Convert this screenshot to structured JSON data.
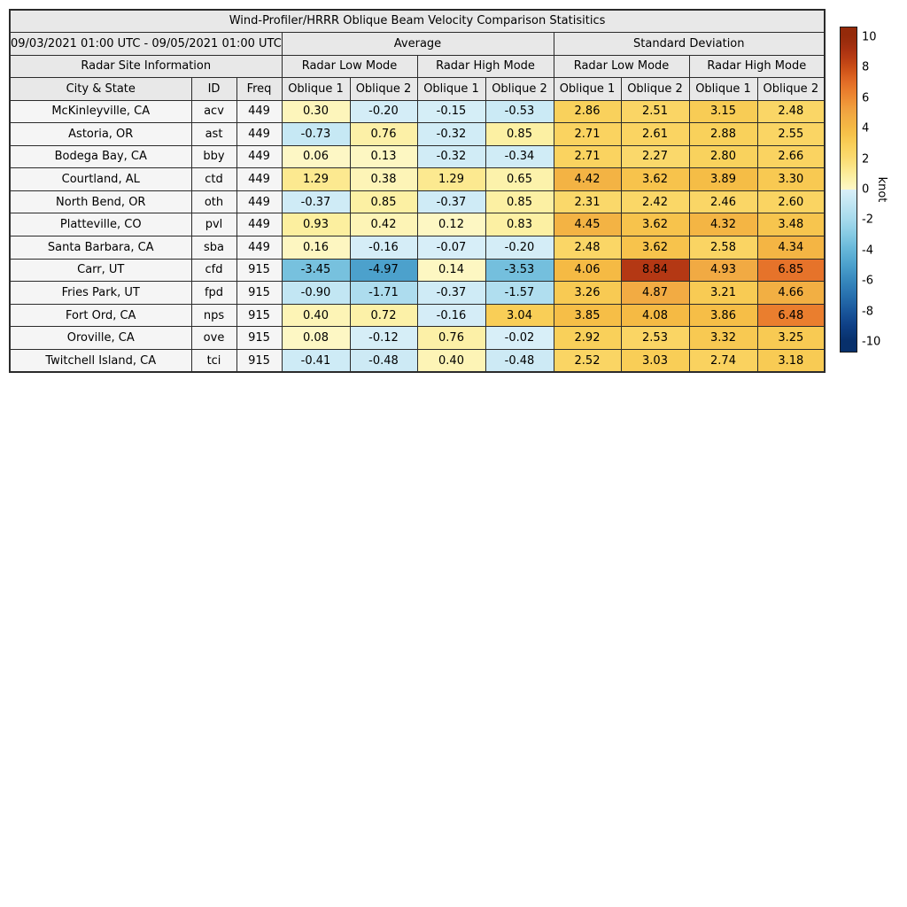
{
  "chart_data": {
    "type": "heatmap-table",
    "title": "Wind-Profiler/HRRR Oblique Beam Velocity Comparison Statisitics",
    "period": "09/03/2021 01:00 UTC - 09/05/2021 01:00 UTC",
    "group_headers": {
      "average": "Average",
      "std_dev": "Standard Deviation",
      "site_info": "Radar Site Information",
      "low_mode": "Radar Low Mode",
      "high_mode": "Radar High Mode"
    },
    "column_headers": {
      "city": "City & State",
      "id": "ID",
      "freq": "Freq",
      "oblique1": "Oblique 1",
      "oblique2": "Oblique 2"
    },
    "rows": [
      {
        "city": "McKinleyville, CA",
        "id": "acv",
        "freq": "449",
        "values": [
          "0.30",
          "-0.20",
          "-0.15",
          "-0.53",
          "2.86",
          "2.51",
          "3.15",
          "2.48"
        ]
      },
      {
        "city": "Astoria, OR",
        "id": "ast",
        "freq": "449",
        "values": [
          "-0.73",
          "0.76",
          "-0.32",
          "0.85",
          "2.71",
          "2.61",
          "2.88",
          "2.55"
        ]
      },
      {
        "city": "Bodega Bay, CA",
        "id": "bby",
        "freq": "449",
        "values": [
          "0.06",
          "0.13",
          "-0.32",
          "-0.34",
          "2.71",
          "2.27",
          "2.80",
          "2.66"
        ]
      },
      {
        "city": "Courtland, AL",
        "id": "ctd",
        "freq": "449",
        "values": [
          "1.29",
          "0.38",
          "1.29",
          "0.65",
          "4.42",
          "3.62",
          "3.89",
          "3.30"
        ]
      },
      {
        "city": "North Bend, OR",
        "id": "oth",
        "freq": "449",
        "values": [
          "-0.37",
          "0.85",
          "-0.37",
          "0.85",
          "2.31",
          "2.42",
          "2.46",
          "2.60"
        ]
      },
      {
        "city": "Platteville, CO",
        "id": "pvl",
        "freq": "449",
        "values": [
          "0.93",
          "0.42",
          "0.12",
          "0.83",
          "4.45",
          "3.62",
          "4.32",
          "3.48"
        ]
      },
      {
        "city": "Santa Barbara, CA",
        "id": "sba",
        "freq": "449",
        "values": [
          "0.16",
          "-0.16",
          "-0.07",
          "-0.20",
          "2.48",
          "3.62",
          "2.58",
          "4.34"
        ]
      },
      {
        "city": "Carr, UT",
        "id": "cfd",
        "freq": "915",
        "values": [
          "-3.45",
          "-4.97",
          "0.14",
          "-3.53",
          "4.06",
          "8.84",
          "4.93",
          "6.85"
        ]
      },
      {
        "city": "Fries Park, UT",
        "id": "fpd",
        "freq": "915",
        "values": [
          "-0.90",
          "-1.71",
          "-0.37",
          "-1.57",
          "3.26",
          "4.87",
          "3.21",
          "4.66"
        ]
      },
      {
        "city": "Fort Ord, CA",
        "id": "nps",
        "freq": "915",
        "values": [
          "0.40",
          "0.72",
          "-0.16",
          "3.04",
          "3.85",
          "4.08",
          "3.86",
          "6.48"
        ]
      },
      {
        "city": "Oroville, CA",
        "id": "ove",
        "freq": "915",
        "values": [
          "0.08",
          "-0.12",
          "0.76",
          "-0.02",
          "2.92",
          "2.53",
          "3.32",
          "3.25"
        ]
      },
      {
        "city": "Twitchell Island, CA",
        "id": "tci",
        "freq": "915",
        "values": [
          "-0.41",
          "-0.48",
          "0.40",
          "-0.48",
          "2.52",
          "3.03",
          "2.74",
          "3.18"
        ]
      }
    ],
    "colorbar": {
      "unit": "knot",
      "ticks": [
        "10",
        "8",
        "6",
        "4",
        "2",
        "0",
        "-2",
        "-4",
        "-6",
        "-8",
        "-10"
      ],
      "vmin": -10.7,
      "vmax": 10.7
    },
    "colormap": {
      "range": [
        -10,
        10
      ],
      "positive_stops": [
        "#fdf8c8",
        "#fcee9c",
        "#fbdc72",
        "#f9cf58",
        "#f5bb44",
        "#f1a943",
        "#ee8c33",
        "#e56f28",
        "#cc4f17",
        "#b03413",
        "#942a0a"
      ],
      "negative_stops": [
        "#d9eff8",
        "#bfe5f2",
        "#a5d9ec",
        "#85cae3",
        "#65b6d8",
        "#4ba0cc",
        "#3788bd",
        "#2770ae",
        "#1a579c",
        "#0e3f85",
        "#08306b"
      ]
    },
    "style": {
      "header_bg": "#e8e8e8",
      "row_label_bg": "#f5f5f5",
      "grid_color": "#2b2b2b",
      "text_color": "#000000"
    }
  }
}
